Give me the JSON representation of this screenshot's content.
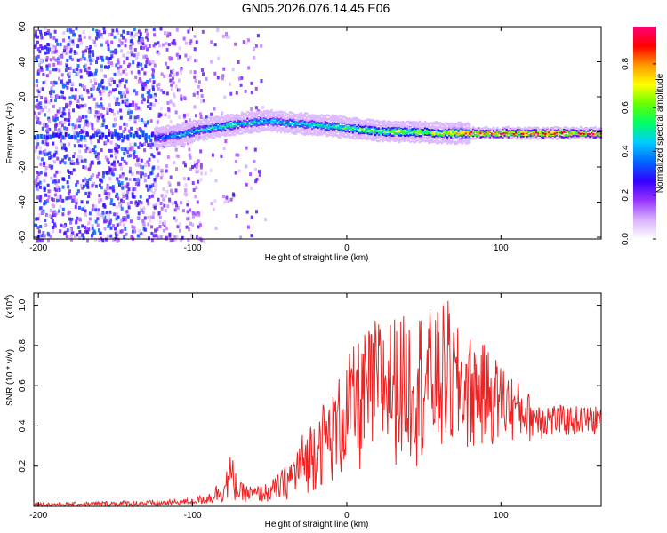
{
  "title": "GN05.2026.076.14.45.E06",
  "chart_data": [
    {
      "type": "heatmap",
      "name": "spectrogram",
      "xlabel": "Height of straight line (km)",
      "ylabel": "Frequency (Hz)",
      "xlim": [
        -203,
        165
      ],
      "ylim": [
        -61,
        60
      ],
      "xticks": [
        "-200",
        "-100",
        "0",
        "100"
      ],
      "xtick_values": [
        -200,
        -100,
        0,
        100
      ],
      "yticks": [
        "60",
        "40",
        "20",
        "0",
        "-20",
        "-40",
        "-60"
      ],
      "ytick_values": [
        60,
        40,
        20,
        0,
        -20,
        -40,
        -60
      ],
      "colorbar": {
        "label": "Normalized spectral amplitude",
        "range": [
          0,
          0.97
        ],
        "ticks": [
          "0.0",
          "0.2",
          "0.4",
          "0.6",
          "0.8"
        ],
        "tick_values": [
          0,
          0.2,
          0.4,
          0.6,
          0.8
        ],
        "colors": [
          "#ffffff",
          "#d9b3ff",
          "#9933ff",
          "#3300ff",
          "#0066ff",
          "#00ccff",
          "#00ff66",
          "#66ff00",
          "#ffff00",
          "#ff9900",
          "#ff0000",
          "#ff0077"
        ]
      },
      "ridge": {
        "x": [
          -125,
          -110,
          -95,
          -80,
          -65,
          -50,
          -40,
          -25,
          -10,
          0,
          10,
          25,
          40,
          60,
          80,
          120,
          165
        ],
        "y": [
          -3,
          -1,
          2,
          4,
          6,
          7,
          6,
          5,
          4,
          3,
          2,
          1,
          1,
          0,
          0,
          0,
          0
        ],
        "amplitude": [
          0.35,
          0.45,
          0.5,
          0.55,
          0.5,
          0.5,
          0.45,
          0.5,
          0.55,
          0.6,
          0.6,
          0.65,
          0.65,
          0.7,
          0.95,
          0.95,
          0.95
        ]
      }
    },
    {
      "type": "line",
      "name": "snr",
      "xlabel": "Height of straight line (km)",
      "ylabel": "SNR (10 * v/v)",
      "scale_label": "(x10",
      "scale_exponent": "4",
      "scale_suffix": ")",
      "xlim": [
        -203,
        165
      ],
      "ylim": [
        0,
        1.06
      ],
      "xticks": [
        "-200",
        "-100",
        "0",
        "100"
      ],
      "xtick_values": [
        -200,
        -100,
        0,
        100
      ],
      "yticks": [
        "0.2",
        "0.4",
        "0.6",
        "0.8",
        "1.0"
      ],
      "ytick_values": [
        0.2,
        0.4,
        0.6,
        0.8,
        1.0
      ],
      "color": "#ee2222",
      "series": [
        {
          "name": "SNR",
          "x": [
            -203,
            -180,
            -160,
            -140,
            -120,
            -100,
            -90,
            -80,
            -75,
            -70,
            -60,
            -50,
            -40,
            -30,
            -20,
            -10,
            0,
            10,
            20,
            30,
            40,
            50,
            60,
            65,
            70,
            80,
            90,
            100,
            120,
            140,
            165
          ],
          "envelope": [
            0.02,
            0.02,
            0.025,
            0.03,
            0.03,
            0.04,
            0.07,
            0.15,
            0.27,
            0.12,
            0.1,
            0.12,
            0.2,
            0.35,
            0.5,
            0.55,
            0.75,
            0.85,
            0.95,
            0.95,
            0.95,
            1.0,
            0.97,
            1.05,
            0.9,
            0.85,
            0.8,
            0.72,
            0.55,
            0.5,
            0.5
          ],
          "floor": [
            0.0,
            0.0,
            0.0,
            0.0,
            0.0,
            0.01,
            0.01,
            0.02,
            0.03,
            0.02,
            0.02,
            0.02,
            0.03,
            0.05,
            0.08,
            0.1,
            0.12,
            0.15,
            0.18,
            0.2,
            0.2,
            0.2,
            0.2,
            0.22,
            0.22,
            0.25,
            0.28,
            0.3,
            0.32,
            0.34,
            0.35
          ]
        }
      ]
    }
  ]
}
